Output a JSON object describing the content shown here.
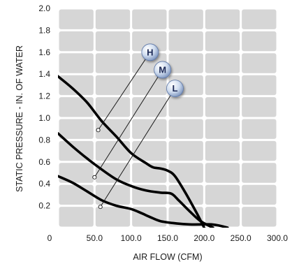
{
  "chart_data": {
    "type": "line",
    "xlabel": "AIR FLOW (CFM)",
    "ylabel": "STATIC PRESSURE - IN. OF WATER",
    "xlim": [
      0,
      300
    ],
    "ylim": [
      0,
      2.0
    ],
    "x_ticks": [
      "0",
      "50.0",
      "100.0",
      "150.0",
      "200.0",
      "250.0",
      "300.0"
    ],
    "y_ticks": [
      "0.2",
      "0.4",
      "0.6",
      "0.8",
      "1.0",
      "1.2",
      "1.4",
      "1.6",
      "1.8",
      "2.0"
    ],
    "grid": true,
    "series": [
      {
        "name": "H",
        "color": "#000000",
        "x": [
          0,
          20,
          40,
          60,
          80,
          100,
          120,
          130,
          140,
          150,
          160,
          175,
          190,
          200
        ],
        "y": [
          1.38,
          1.27,
          1.14,
          0.97,
          0.83,
          0.68,
          0.59,
          0.55,
          0.54,
          0.52,
          0.47,
          0.31,
          0.13,
          0.0
        ]
      },
      {
        "name": "M",
        "color": "#000000",
        "x": [
          0,
          20,
          40,
          60,
          80,
          100,
          120,
          140,
          155,
          165,
          180,
          195,
          212
        ],
        "y": [
          0.86,
          0.74,
          0.63,
          0.53,
          0.44,
          0.38,
          0.34,
          0.32,
          0.31,
          0.25,
          0.15,
          0.06,
          0.0
        ]
      },
      {
        "name": "L",
        "color": "#000000",
        "x": [
          0,
          20,
          40,
          60,
          80,
          100,
          115,
          125,
          140,
          160,
          180,
          200,
          210,
          220,
          232
        ],
        "y": [
          0.47,
          0.41,
          0.33,
          0.25,
          0.2,
          0.17,
          0.13,
          0.1,
          0.06,
          0.04,
          0.03,
          0.03,
          0.03,
          0.02,
          0.0
        ]
      }
    ],
    "callouts": [
      {
        "label": "H",
        "point": [
          55,
          0.89
        ],
        "badge": [
          126,
          1.6
        ]
      },
      {
        "label": "M",
        "point": [
          50,
          0.46
        ],
        "badge": [
          143,
          1.44
        ]
      },
      {
        "label": "L",
        "point": [
          58,
          0.19
        ],
        "badge": [
          160,
          1.27
        ]
      }
    ]
  }
}
